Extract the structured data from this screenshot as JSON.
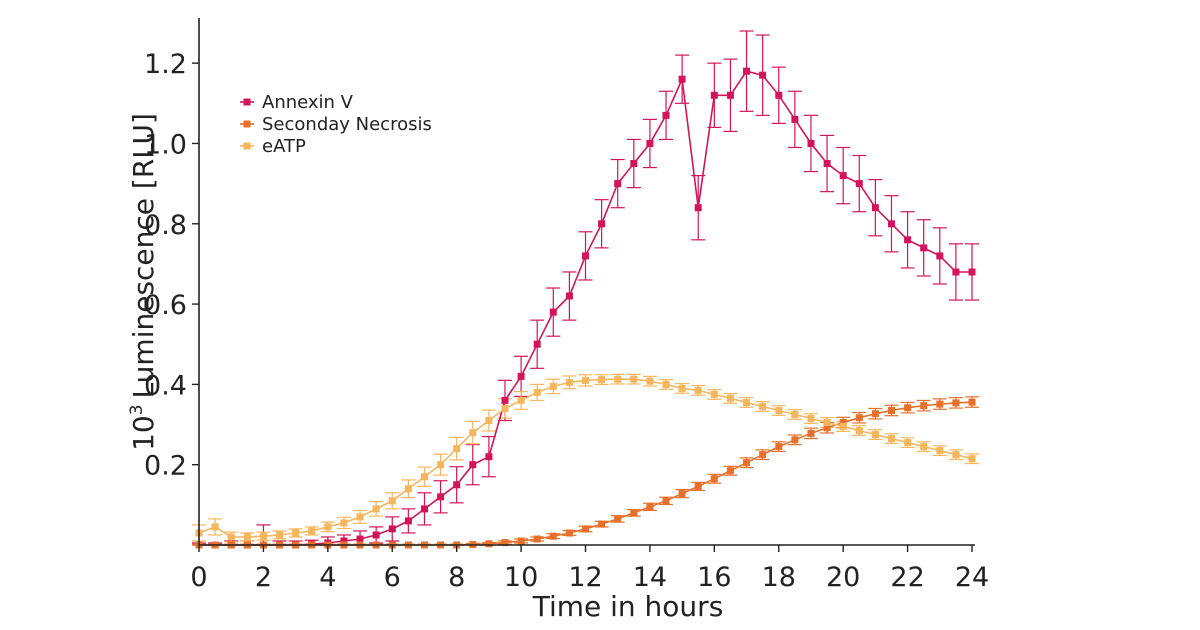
{
  "chart_data": {
    "type": "line",
    "xlabel": "Time in hours",
    "ylabel_prefix": "10",
    "ylabel_sup": "3",
    "ylabel_rest": "Luminescence  [RLU]",
    "xlim": [
      0,
      24
    ],
    "ylim": [
      0,
      1.3
    ],
    "xticks": [
      "0",
      "2",
      "4",
      "6",
      "8",
      "10",
      "12",
      "14",
      "16",
      "18",
      "20",
      "22",
      "24"
    ],
    "yticks": [
      "0.2",
      "0.4",
      "0.6",
      "0.8",
      "1.0",
      "1.2"
    ],
    "grid": false,
    "legend_position": "top-left",
    "series": [
      {
        "name": "Annexin V",
        "color": "#d4145a",
        "x": [
          0,
          0.5,
          1,
          1.5,
          2,
          2.5,
          3,
          3.5,
          4,
          4.5,
          5,
          5.5,
          6,
          6.5,
          7,
          7.5,
          8,
          8.5,
          9,
          9.5,
          10,
          10.5,
          11,
          11.5,
          12,
          12.5,
          13,
          13.5,
          14,
          14.5,
          15,
          15.5,
          16,
          16.5,
          17,
          17.5,
          18,
          18.5,
          19,
          19.5,
          20,
          20.5,
          21,
          21.5,
          22,
          22.5,
          23,
          23.5,
          24
        ],
        "y": [
          0,
          0,
          0,
          0,
          0,
          0,
          0,
          0.002,
          0.005,
          0.01,
          0.015,
          0.025,
          0.04,
          0.06,
          0.09,
          0.12,
          0.15,
          0.2,
          0.22,
          0.36,
          0.42,
          0.5,
          0.58,
          0.62,
          0.72,
          0.8,
          0.9,
          0.95,
          1.0,
          1.07,
          1.16,
          0.84,
          1.12,
          1.12,
          1.18,
          1.17,
          1.12,
          1.06,
          1.0,
          0.95,
          0.92,
          0.9,
          0.84,
          0.8,
          0.76,
          0.74,
          0.72,
          0.68,
          0.68
        ],
        "err": [
          0.005,
          0.005,
          0.01,
          0.01,
          0.05,
          0.01,
          0.01,
          0.01,
          0.015,
          0.015,
          0.02,
          0.02,
          0.03,
          0.03,
          0.04,
          0.04,
          0.045,
          0.05,
          0.05,
          0.05,
          0.05,
          0.06,
          0.06,
          0.06,
          0.06,
          0.06,
          0.06,
          0.06,
          0.06,
          0.06,
          0.06,
          0.08,
          0.08,
          0.09,
          0.1,
          0.1,
          0.07,
          0.07,
          0.07,
          0.07,
          0.07,
          0.07,
          0.07,
          0.07,
          0.07,
          0.07,
          0.07,
          0.07,
          0.07
        ]
      },
      {
        "name": "Seconday Necrosis",
        "color": "#e8702a",
        "x": [
          0,
          0.5,
          1,
          1.5,
          2,
          2.5,
          3,
          3.5,
          4,
          4.5,
          5,
          5.5,
          6,
          6.5,
          7,
          7.5,
          8,
          8.5,
          9,
          9.5,
          10,
          10.5,
          11,
          11.5,
          12,
          12.5,
          13,
          13.5,
          14,
          14.5,
          15,
          15.5,
          16,
          16.5,
          17,
          17.5,
          18,
          18.5,
          19,
          19.5,
          20,
          20.5,
          21,
          21.5,
          22,
          22.5,
          23,
          23.5,
          24
        ],
        "y": [
          0,
          0,
          0,
          0,
          0,
          0,
          0,
          0,
          0,
          0,
          0,
          0,
          0,
          0,
          0,
          0,
          0,
          0.001,
          0.003,
          0.006,
          0.01,
          0.015,
          0.022,
          0.03,
          0.04,
          0.052,
          0.065,
          0.08,
          0.095,
          0.11,
          0.128,
          0.146,
          0.165,
          0.185,
          0.205,
          0.225,
          0.245,
          0.262,
          0.278,
          0.292,
          0.305,
          0.317,
          0.327,
          0.335,
          0.342,
          0.347,
          0.351,
          0.354,
          0.356
        ],
        "err": [
          0.002,
          0.002,
          0.002,
          0.002,
          0.002,
          0.002,
          0.002,
          0.002,
          0.002,
          0.002,
          0.002,
          0.002,
          0.002,
          0.002,
          0.002,
          0.002,
          0.002,
          0.003,
          0.003,
          0.004,
          0.005,
          0.005,
          0.006,
          0.006,
          0.007,
          0.007,
          0.008,
          0.008,
          0.009,
          0.009,
          0.01,
          0.01,
          0.011,
          0.011,
          0.012,
          0.012,
          0.012,
          0.012,
          0.013,
          0.013,
          0.013,
          0.013,
          0.013,
          0.013,
          0.013,
          0.013,
          0.013,
          0.013,
          0.013
        ]
      },
      {
        "name": "eATP",
        "color": "#f7b55c",
        "x": [
          0,
          0.5,
          1,
          1.5,
          2,
          2.5,
          3,
          3.5,
          4,
          4.5,
          5,
          5.5,
          6,
          6.5,
          7,
          7.5,
          8,
          8.5,
          9,
          9.5,
          10,
          10.5,
          11,
          11.5,
          12,
          12.5,
          13,
          13.5,
          14,
          14.5,
          15,
          15.5,
          16,
          16.5,
          17,
          17.5,
          18,
          18.5,
          19,
          19.5,
          20,
          20.5,
          21,
          21.5,
          22,
          22.5,
          23,
          23.5,
          24
        ],
        "y": [
          0.03,
          0.045,
          0.02,
          0.02,
          0.022,
          0.025,
          0.03,
          0.035,
          0.045,
          0.055,
          0.07,
          0.09,
          0.11,
          0.14,
          0.17,
          0.2,
          0.24,
          0.28,
          0.31,
          0.34,
          0.36,
          0.38,
          0.395,
          0.405,
          0.41,
          0.412,
          0.413,
          0.413,
          0.408,
          0.4,
          0.39,
          0.385,
          0.375,
          0.365,
          0.355,
          0.345,
          0.335,
          0.325,
          0.315,
          0.305,
          0.295,
          0.285,
          0.275,
          0.265,
          0.255,
          0.245,
          0.235,
          0.225,
          0.215
        ],
        "err": [
          0.02,
          0.02,
          0.012,
          0.01,
          0.01,
          0.01,
          0.01,
          0.01,
          0.012,
          0.014,
          0.016,
          0.018,
          0.02,
          0.022,
          0.024,
          0.026,
          0.028,
          0.028,
          0.026,
          0.024,
          0.022,
          0.02,
          0.018,
          0.016,
          0.014,
          0.012,
          0.012,
          0.012,
          0.012,
          0.012,
          0.012,
          0.012,
          0.012,
          0.012,
          0.012,
          0.012,
          0.012,
          0.012,
          0.012,
          0.012,
          0.012,
          0.012,
          0.012,
          0.012,
          0.012,
          0.012,
          0.012,
          0.012,
          0.012
        ]
      }
    ]
  }
}
